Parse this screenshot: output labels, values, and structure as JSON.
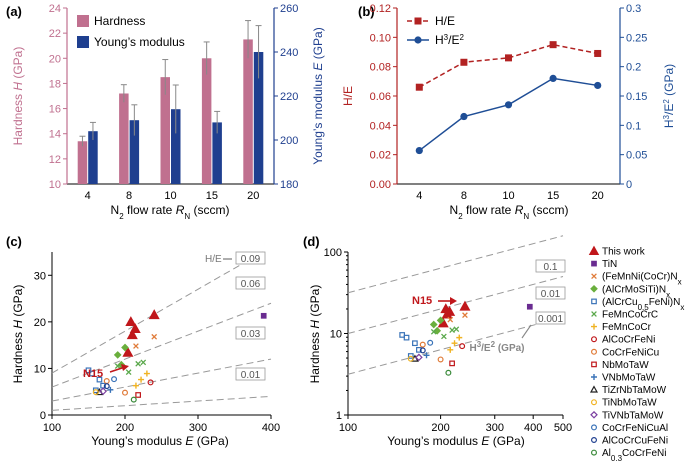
{
  "figure": {
    "panel_labels": [
      "(a)",
      "(b)",
      "(c)",
      "(d)"
    ]
  },
  "colors": {
    "hardness": "#c0708f",
    "modulus": "#1f3f8f",
    "he": "#b22222",
    "h3e2": "#1f4e96",
    "guide": "#999999"
  },
  "chart_data": [
    {
      "panel": "(a)",
      "type": "bar",
      "xlabel": "N2 flow rate RN (sccm)",
      "ylabel": "Hardness H (GPa)",
      "y2label": "Young's modulus E (GPa)",
      "categories": [
        "4",
        "8",
        "10",
        "15",
        "20"
      ],
      "ylim": [
        10,
        24
      ],
      "y2lim": [
        180,
        260
      ],
      "yticks": [
        "10",
        "12",
        "14",
        "16",
        "18",
        "20",
        "22",
        "24"
      ],
      "y2ticks": [
        "180",
        "200",
        "220",
        "240",
        "260"
      ],
      "series": [
        {
          "name": "Hardness",
          "axis": "left",
          "values": [
            13.4,
            17.2,
            18.5,
            20.0,
            21.5
          ],
          "errors": [
            0.4,
            0.7,
            1.4,
            1.3,
            1.5
          ]
        },
        {
          "name": "Young’s modulus",
          "axis": "right",
          "values": [
            204,
            209,
            214,
            208,
            240
          ],
          "errors": [
            4,
            7,
            11,
            5,
            12
          ]
        }
      ],
      "legend": "top-left"
    },
    {
      "panel": "(b)",
      "type": "line",
      "xlabel": "N2 flow rate RN (sccm)",
      "ylabel": "H/E",
      "y2label": "H3/E2 (GPa)",
      "categories": [
        "4",
        "8",
        "10",
        "15",
        "20"
      ],
      "ylim": [
        0,
        0.12
      ],
      "y2lim": [
        0,
        0.3
      ],
      "yticks": [
        "0.00",
        "0.02",
        "0.04",
        "0.06",
        "0.08",
        "0.10",
        "0.12"
      ],
      "y2ticks": [
        "0",
        "0.05",
        "0.1",
        "0.15",
        "0.2",
        "0.25",
        "0.3"
      ],
      "series": [
        {
          "name": "H/E",
          "axis": "left",
          "values": [
            0.066,
            0.083,
            0.086,
            0.095,
            0.089
          ]
        },
        {
          "name": "H3/E2",
          "axis": "right",
          "values": [
            0.057,
            0.115,
            0.135,
            0.18,
            0.168
          ]
        }
      ],
      "legend": "top-left"
    },
    {
      "panel": "(c)",
      "type": "scatter",
      "xlabel": "Young’s modulus E (GPa)",
      "ylabel": "Hardness H (GPa)",
      "xlim": [
        100,
        400
      ],
      "ylim": [
        0,
        35
      ],
      "xticks": [
        "100",
        "200",
        "300",
        "400"
      ],
      "yticks": [
        "0",
        "10",
        "20",
        "30"
      ],
      "guide_lines": [
        {
          "label": "0.09",
          "slope": 0.09
        },
        {
          "label": "0.06",
          "slope": 0.06
        },
        {
          "label": "0.03",
          "slope": 0.03
        },
        {
          "label": "0.01",
          "slope": 0.01
        }
      ],
      "guide_title": "H/E",
      "annotation": "N15",
      "series": [
        {
          "name": "This work",
          "points": [
            [
              204,
              13.4
            ],
            [
              210,
              17.2
            ],
            [
              214,
              18.5
            ],
            [
              208,
              20.0
            ],
            [
              240,
              21.5
            ]
          ]
        },
        {
          "name": "TiN",
          "points": [
            [
              390,
              21.3
            ]
          ]
        },
        {
          "name": "(FeMnNi(CoCr)Nx",
          "points": [
            [
              215,
              14.8
            ],
            [
              240,
              16.8
            ]
          ]
        },
        {
          "name": "(AlCrMoSiTi)Nx",
          "points": [
            [
              200,
              14.5
            ],
            [
              190,
              12.9
            ],
            [
              195,
              10.8
            ]
          ]
        },
        {
          "name": "(AlCrCu0.5FeNi)Nx",
          "points": [
            [
              150,
              9.6
            ],
            [
              155,
              8.9
            ],
            [
              165,
              7.6
            ],
            [
              170,
              6.3
            ],
            [
              160,
              5.3
            ]
          ]
        },
        {
          "name": "FeMnCoCrC",
          "points": [
            [
              218,
              11.0
            ],
            [
              225,
              11.3
            ],
            [
              205,
              9.2
            ],
            [
              190,
              10.5
            ]
          ]
        },
        {
          "name": "FeMnCoCr",
          "points": [
            [
              230,
              8.9
            ],
            [
              222,
              7.6
            ],
            [
              215,
              6.3
            ]
          ]
        },
        {
          "name": "AlCoCrFeNi",
          "points": [
            [
              235,
              7.0
            ]
          ]
        },
        {
          "name": "CoCrFeNiCu",
          "points": [
            [
              175,
              7.3
            ],
            [
              200,
              4.8
            ]
          ]
        },
        {
          "name": "NbMoTaW",
          "points": [
            [
              218,
              4.3
            ]
          ]
        },
        {
          "name": "VNbMoTaW",
          "points": [
            [
              180,
              5.4
            ]
          ]
        },
        {
          "name": "TiZrNbTaMoW",
          "points": [
            [
              165,
              4.9
            ]
          ]
        },
        {
          "name": "TiNbMoTaW",
          "points": [
            [
              160,
              4.9
            ]
          ]
        },
        {
          "name": "TiVNbTaMoW",
          "points": [
            [
              170,
              5.1
            ]
          ]
        },
        {
          "name": "CoCrFeNiCuAl",
          "points": [
            [
              185,
              7.7
            ]
          ]
        },
        {
          "name": "AlCoCrCuFeNi",
          "points": [
            [
              175,
              6.2
            ]
          ]
        },
        {
          "name": "Al0.3CoCrFeNi",
          "points": [
            [
              212,
              3.3
            ]
          ]
        }
      ]
    },
    {
      "panel": "(d)",
      "type": "scatter",
      "xlabel": "Young’s modulus E (GPa)",
      "ylabel": "Hardness H (GPa)",
      "xscale": "log",
      "yscale": "log",
      "xlim": [
        100,
        500
      ],
      "ylim": [
        1,
        100
      ],
      "xticks": [
        "100",
        "200",
        "300",
        "400",
        "500"
      ],
      "yticks": [
        "1",
        "10",
        "100"
      ],
      "guide_lines": [
        {
          "label": "0.1",
          "value": 0.1
        },
        {
          "label": "0.01",
          "value": 0.01
        },
        {
          "label": "0.001",
          "value": 0.001
        }
      ],
      "guide_title": "H3/E2 (GPa)",
      "annotation": "N15",
      "series_ref": "same as panel (c)"
    }
  ],
  "legend_entries": [
    {
      "label": "This work",
      "marker": "triangle",
      "color": "#c0171b",
      "filled": true
    },
    {
      "label": "TiN",
      "marker": "square",
      "color": "#6a2c91",
      "filled": true
    },
    {
      "label": "(FeMnNi(CoCr)Nx",
      "marker": "x",
      "color": "#e07b39",
      "filled": false
    },
    {
      "label": "(AlCrMoSiTi)Nx",
      "marker": "diamond",
      "color": "#6aaf3d",
      "filled": true
    },
    {
      "label": "(AlCrCu0.5FeNi)Nx",
      "marker": "square",
      "color": "#3a73b8",
      "filled": false
    },
    {
      "label": "FeMnCoCrC",
      "marker": "x",
      "color": "#5aa84b",
      "filled": false
    },
    {
      "label": "FeMnCoCr",
      "marker": "plus",
      "color": "#f0b323",
      "filled": false
    },
    {
      "label": "AlCoCrFeNi",
      "marker": "circle",
      "color": "#c0171b",
      "filled": false
    },
    {
      "label": "CoCrFeNiCu",
      "marker": "circle",
      "color": "#e07b39",
      "filled": false
    },
    {
      "label": "NbMoTaW",
      "marker": "square",
      "color": "#c0171b",
      "filled": false
    },
    {
      "label": "VNbMoTaW",
      "marker": "plus",
      "color": "#3a73b8",
      "filled": false
    },
    {
      "label": "TiZrNbTaMoW",
      "marker": "triangle",
      "color": "#222222",
      "filled": false
    },
    {
      "label": "TiNbMoTaW",
      "marker": "circle",
      "color": "#f0b323",
      "filled": false
    },
    {
      "label": "TiVNbTaMoW",
      "marker": "diamond",
      "color": "#7b3fa0",
      "filled": false
    },
    {
      "label": "CoCrFeNiCuAl",
      "marker": "circle",
      "color": "#3a73b8",
      "filled": false
    },
    {
      "label": "AlCoCrCuFeNi",
      "marker": "circle",
      "color": "#1f3f8f",
      "filled": false
    },
    {
      "label": "Al0.3CoCrFeNi",
      "marker": "circle",
      "color": "#3a8a3a",
      "filled": false
    }
  ]
}
